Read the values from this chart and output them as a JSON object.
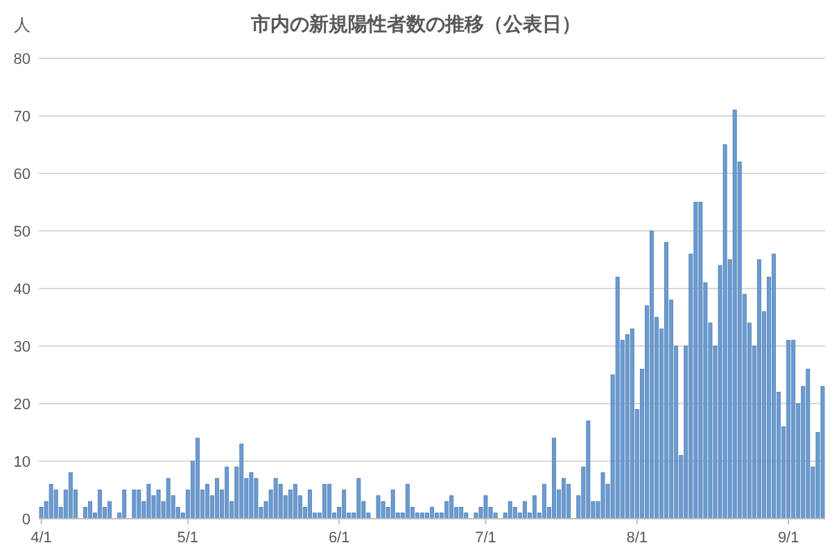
{
  "chart_data": {
    "type": "bar",
    "title": "市内の新規陽性者数の推移（公表日）",
    "ylabel": "人",
    "categories": [
      "4/1",
      null,
      null,
      null,
      null,
      null,
      null,
      null,
      null,
      null,
      null,
      null,
      null,
      null,
      null,
      null,
      null,
      null,
      null,
      null,
      null,
      null,
      null,
      null,
      null,
      null,
      null,
      null,
      null,
      null,
      "5/1",
      null,
      null,
      null,
      null,
      null,
      null,
      null,
      null,
      null,
      null,
      null,
      null,
      null,
      null,
      null,
      null,
      null,
      null,
      null,
      null,
      null,
      null,
      null,
      null,
      null,
      null,
      null,
      null,
      null,
      null,
      "6/1",
      null,
      null,
      null,
      null,
      null,
      null,
      null,
      null,
      null,
      null,
      null,
      null,
      null,
      null,
      null,
      null,
      null,
      null,
      null,
      null,
      null,
      null,
      null,
      null,
      null,
      null,
      null,
      null,
      null,
      "7/1",
      null,
      null,
      null,
      null,
      null,
      null,
      null,
      null,
      null,
      null,
      null,
      null,
      null,
      null,
      null,
      null,
      null,
      null,
      null,
      null,
      null,
      null,
      null,
      null,
      null,
      null,
      null,
      null,
      null,
      null,
      "8/1",
      null,
      null,
      null,
      null,
      null,
      null,
      null,
      null,
      null,
      null,
      null,
      null,
      null,
      null,
      null,
      null,
      null,
      null,
      null,
      null,
      null,
      null,
      null,
      null,
      null,
      null,
      null,
      null,
      null,
      null,
      "9/1",
      null,
      null,
      null,
      null,
      null,
      null,
      null
    ],
    "values": [
      2,
      3,
      6,
      5,
      2,
      5,
      8,
      5,
      0,
      2,
      3,
      1,
      5,
      2,
      3,
      0,
      1,
      5,
      0,
      5,
      5,
      3,
      6,
      4,
      5,
      3,
      7,
      4,
      2,
      1,
      5,
      10,
      14,
      5,
      6,
      4,
      7,
      5,
      9,
      3,
      9,
      13,
      7,
      8,
      7,
      2,
      3,
      5,
      7,
      6,
      4,
      5,
      6,
      4,
      2,
      5,
      1,
      1,
      6,
      6,
      1,
      2,
      5,
      1,
      1,
      7,
      3,
      1,
      0,
      4,
      3,
      2,
      5,
      1,
      1,
      6,
      2,
      1,
      1,
      1,
      2,
      1,
      1,
      3,
      4,
      2,
      2,
      1,
      0,
      1,
      2,
      4,
      2,
      1,
      0,
      1,
      3,
      2,
      1,
      3,
      1,
      4,
      1,
      6,
      2,
      14,
      5,
      7,
      6,
      0,
      4,
      9,
      17,
      3,
      3,
      8,
      6,
      25,
      42,
      31,
      32,
      33,
      19,
      26,
      37,
      50,
      35,
      33,
      48,
      38,
      30,
      11,
      30,
      46,
      55,
      55,
      41,
      34,
      30,
      44,
      65,
      45,
      71,
      62,
      39,
      34,
      30,
      45,
      36,
      42,
      46,
      22,
      16,
      31,
      31,
      20,
      23,
      26,
      9,
      15,
      23
    ],
    "color": "#6b9bd2",
    "ylim": [
      0,
      80
    ],
    "yticks": [
      0,
      10,
      20,
      30,
      40,
      50,
      60,
      70,
      80
    ],
    "grid": "y"
  }
}
